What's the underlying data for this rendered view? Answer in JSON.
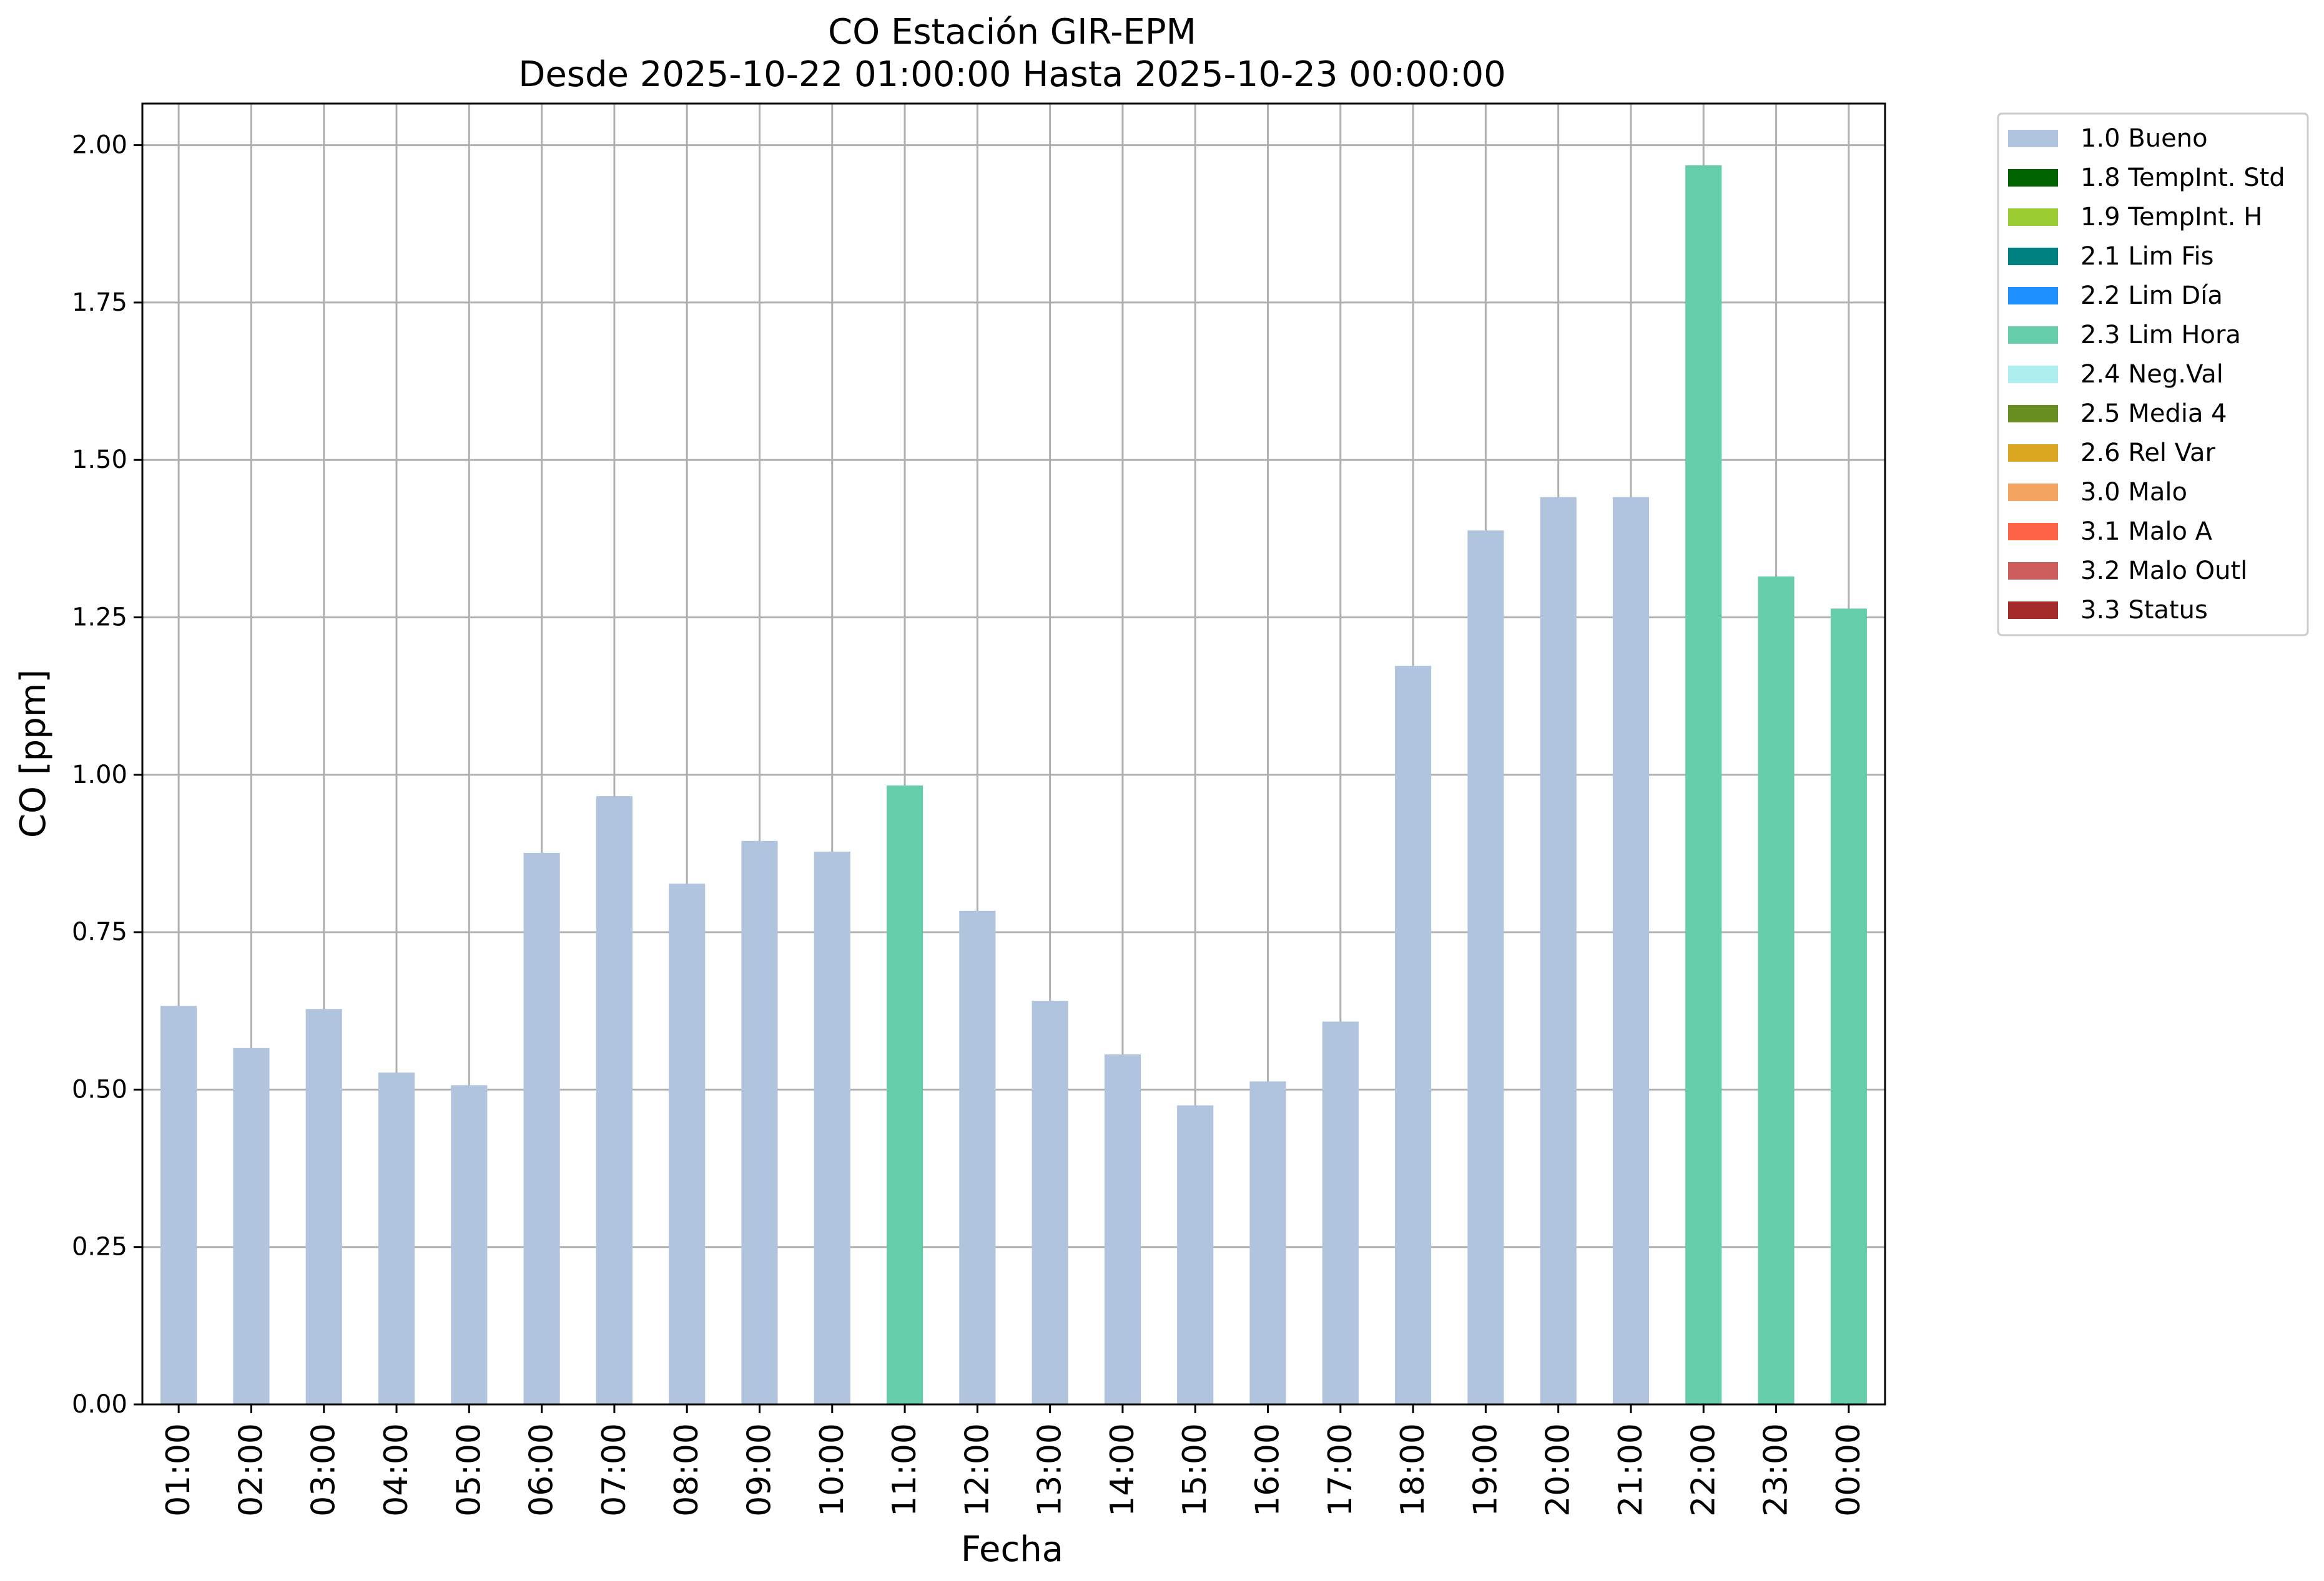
{
  "chart_data": {
    "type": "bar",
    "title": "CO Estación GIR-EPM",
    "subtitle": "Desde 2025-10-22 01:00:00 Hasta 2025-10-23 00:00:00",
    "xlabel": "Fecha",
    "ylabel": "CO [ppm]",
    "ylim": [
      0,
      2.066
    ],
    "yticks": [
      "0.00",
      "0.25",
      "0.50",
      "0.75",
      "1.00",
      "1.25",
      "1.50",
      "1.75",
      "2.00"
    ],
    "grid": true,
    "legend_position": "outside-top-right",
    "categories": [
      "01:00",
      "02:00",
      "03:00",
      "04:00",
      "05:00",
      "06:00",
      "07:00",
      "08:00",
      "09:00",
      "10:00",
      "11:00",
      "12:00",
      "13:00",
      "14:00",
      "15:00",
      "16:00",
      "17:00",
      "18:00",
      "19:00",
      "20:00",
      "21:00",
      "22:00",
      "23:00",
      "00:00"
    ],
    "values": [
      0.633,
      0.566,
      0.628,
      0.527,
      0.507,
      0.876,
      0.966,
      0.827,
      0.895,
      0.878,
      0.983,
      0.784,
      0.641,
      0.556,
      0.475,
      0.513,
      0.608,
      1.173,
      1.388,
      1.441,
      1.441,
      1.968,
      1.315,
      1.264
    ],
    "flags": [
      "1.0 Bueno",
      "1.0 Bueno",
      "1.0 Bueno",
      "1.0 Bueno",
      "1.0 Bueno",
      "1.0 Bueno",
      "1.0 Bueno",
      "1.0 Bueno",
      "1.0 Bueno",
      "1.0 Bueno",
      "2.3 Lim Hora",
      "1.0 Bueno",
      "1.0 Bueno",
      "1.0 Bueno",
      "1.0 Bueno",
      "1.0 Bueno",
      "1.0 Bueno",
      "1.0 Bueno",
      "1.0 Bueno",
      "1.0 Bueno",
      "1.0 Bueno",
      "2.3 Lim Hora",
      "2.3 Lim Hora",
      "2.3 Lim Hora"
    ],
    "legend": [
      {
        "label": "1.0 Bueno",
        "color": "#b0c4de"
      },
      {
        "label": "1.8 TempInt. Std",
        "color": "#006400"
      },
      {
        "label": "1.9 TempInt. H",
        "color": "#9acd32"
      },
      {
        "label": "2.1 Lim Fis",
        "color": "#008080"
      },
      {
        "label": "2.2 Lim Día",
        "color": "#1e90ff"
      },
      {
        "label": "2.3 Lim Hora",
        "color": "#66cdaa"
      },
      {
        "label": "2.4 Neg.Val",
        "color": "#afeeee"
      },
      {
        "label": "2.5 Media 4",
        "color": "#6b8e23"
      },
      {
        "label": "2.6 Rel Var",
        "color": "#daa520"
      },
      {
        "label": "3.0 Malo",
        "color": "#f4a460"
      },
      {
        "label": "3.1 Malo A",
        "color": "#ff6347"
      },
      {
        "label": "3.2 Malo Outl",
        "color": "#cd5c5c"
      },
      {
        "label": "3.3 Status",
        "color": "#a52a2a"
      }
    ]
  }
}
